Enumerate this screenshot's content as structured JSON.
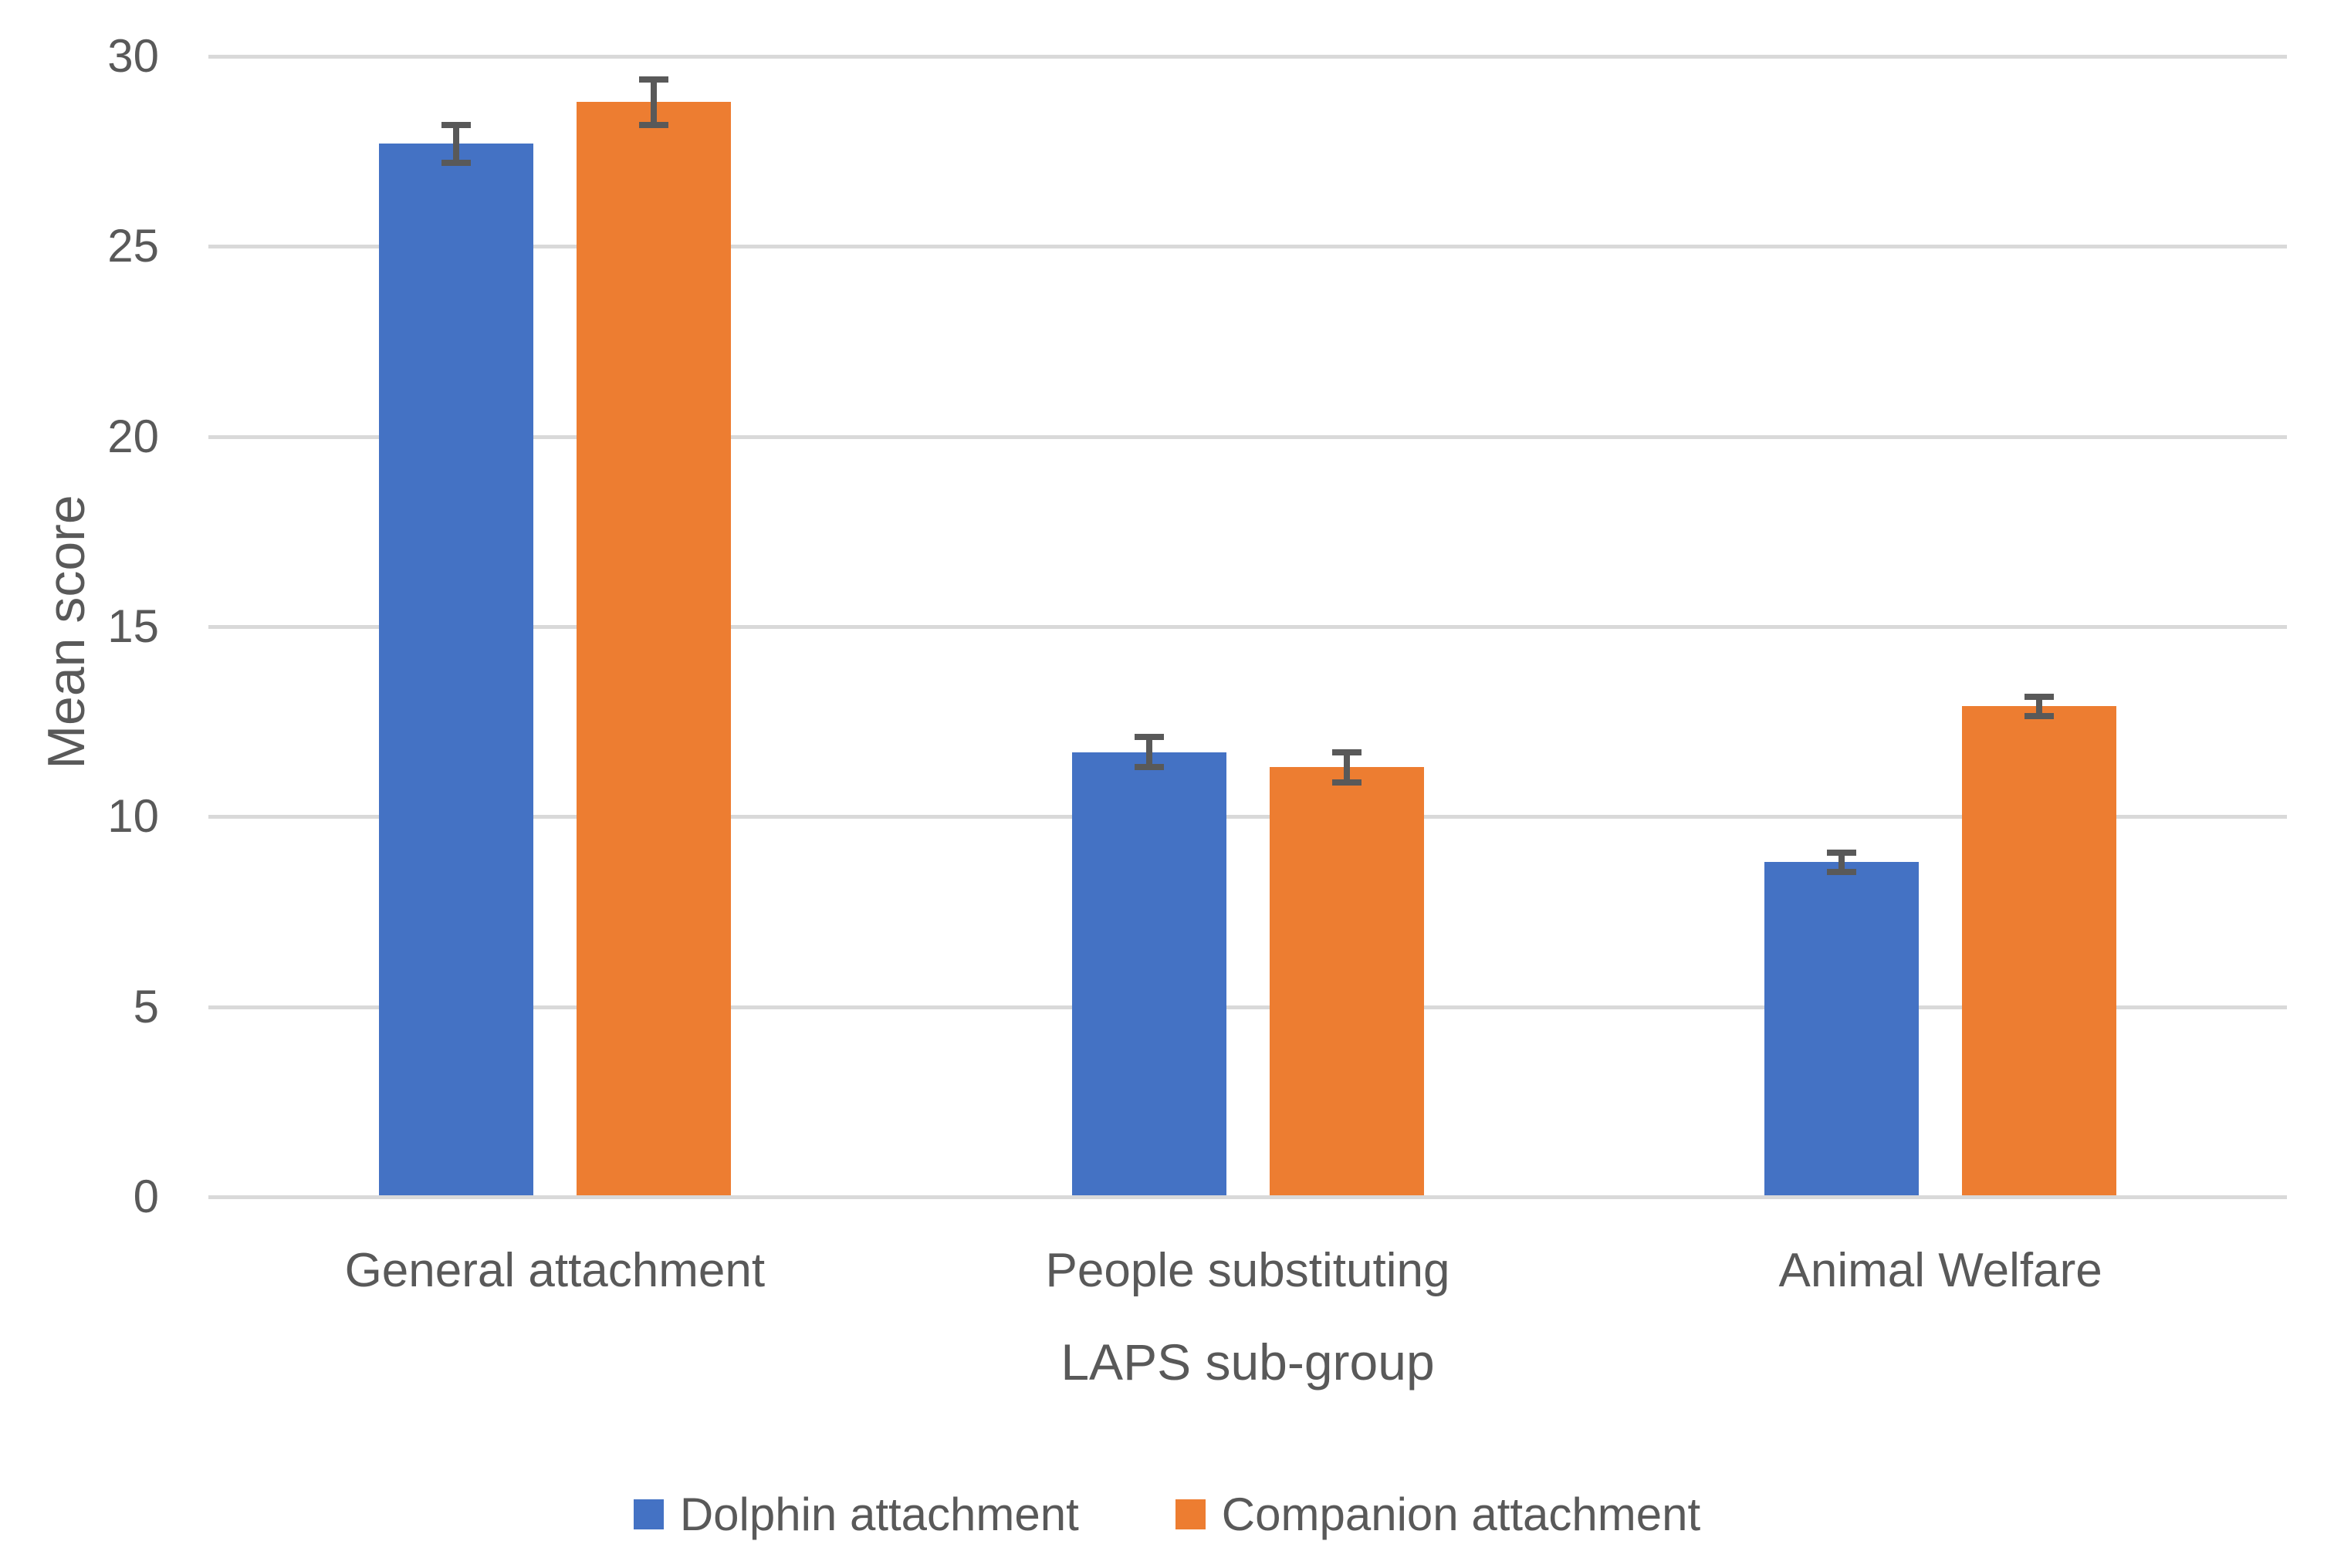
{
  "chart_data": {
    "type": "bar",
    "title": "",
    "categories": [
      "General attachment",
      "People substituting",
      "Animal Welfare"
    ],
    "series": [
      {
        "name": "Dolphin attachment",
        "color": "#4472C4",
        "values": [
          27.7,
          11.7,
          8.8
        ],
        "errors": [
          0.5,
          0.4,
          0.25
        ]
      },
      {
        "name": "Companion attachment",
        "color": "#ED7D31",
        "values": [
          28.8,
          11.3,
          12.9
        ],
        "errors": [
          0.6,
          0.4,
          0.25
        ]
      }
    ],
    "xlabel": "LAPS sub-group",
    "ylabel": "Mean score",
    "ylim": [
      0,
      30
    ],
    "yticks": [
      0,
      5,
      10,
      15,
      20,
      25,
      30
    ],
    "grid": true,
    "legend_position": "bottom",
    "gridline_color": "#D9D9D9",
    "error_bar_color": "#595959",
    "text_color": "#595959",
    "background_color": "#FFFFFF"
  }
}
